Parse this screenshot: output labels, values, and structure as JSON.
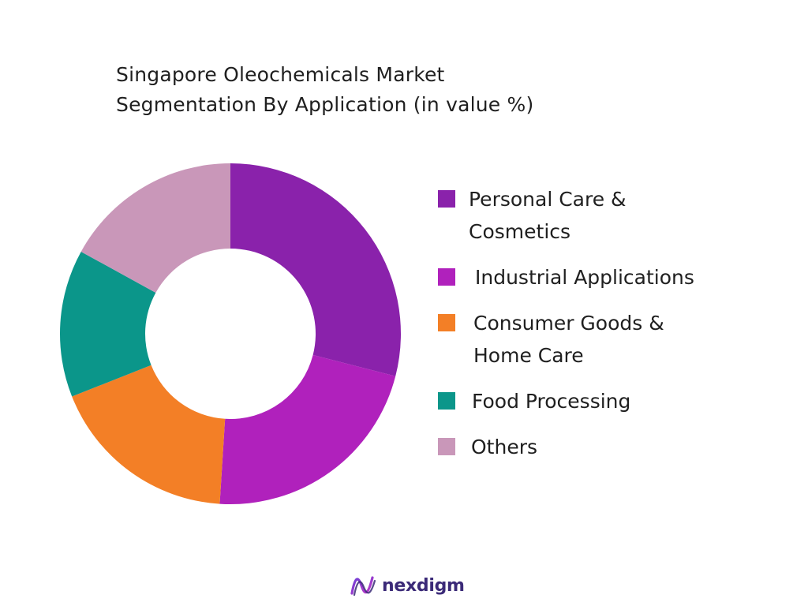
{
  "chart_data": {
    "type": "pie",
    "variant": "donut",
    "title": "Singapore Oleochemicals Market Segmentation By Application (in value %)",
    "title_lines": [
      "Singapore Oleochemicals Market",
      "Segmentation By Application (in value %)"
    ],
    "legend_position": "right",
    "start_angle_deg": 0,
    "direction": "clockwise",
    "series": [
      {
        "name": "Personal Care & Cosmetics",
        "legend_label": "Personal Care &\nCosmetics",
        "value": 29,
        "color": "#8a22ab"
      },
      {
        "name": "Industrial Applications",
        "legend_label": "Industrial Applications",
        "value": 22,
        "color": "#b021bc"
      },
      {
        "name": "Consumer Goods & Home Care",
        "legend_label": "Consumer Goods &\nHome Care",
        "value": 18,
        "color": "#f37f26"
      },
      {
        "name": "Food Processing",
        "legend_label": "Food Processing",
        "value": 14,
        "color": "#0b968a"
      },
      {
        "name": "Others",
        "legend_label": "Others",
        "value": 17,
        "color": "#c997b9"
      }
    ]
  },
  "logo": {
    "text": "nexdigm",
    "color": "#3b2a78",
    "icon": "nexdigm-wave-logo-icon"
  }
}
